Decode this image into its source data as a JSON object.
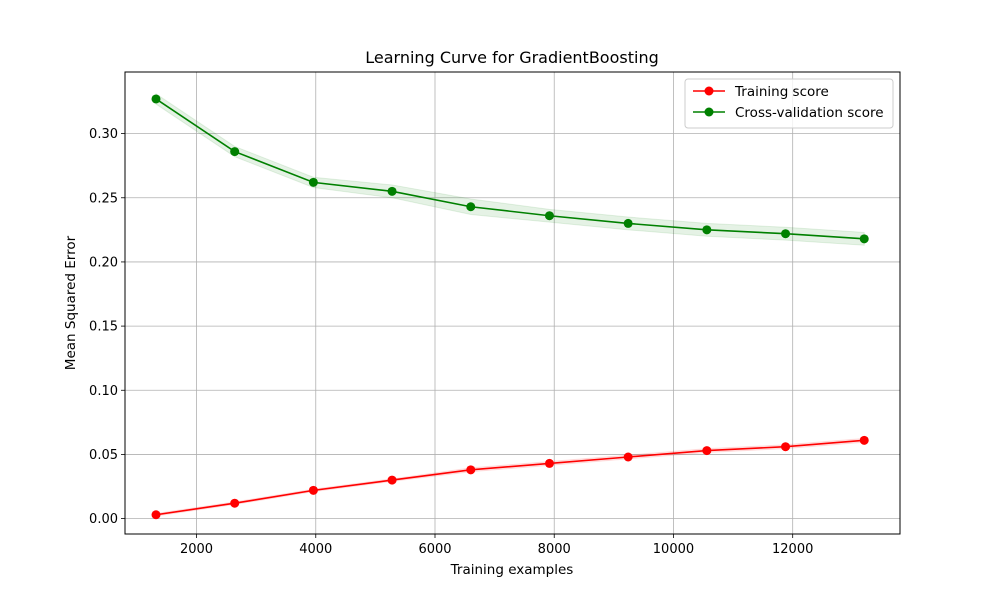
{
  "chart_data": {
    "type": "line",
    "title": "Learning Curve for GradientBoosting",
    "xlabel": "Training examples",
    "ylabel": "Mean Squared Error",
    "xlim": [
      800,
      13800
    ],
    "ylim": [
      -0.012,
      0.348
    ],
    "xticks": [
      2000,
      4000,
      6000,
      8000,
      10000,
      12000
    ],
    "xtick_labels": [
      "2000",
      "4000",
      "6000",
      "8000",
      "10000",
      "12000"
    ],
    "yticks": [
      0.0,
      0.05,
      0.1,
      0.15,
      0.2,
      0.25,
      0.3
    ],
    "ytick_labels": [
      "0.00",
      "0.05",
      "0.10",
      "0.15",
      "0.20",
      "0.25",
      "0.30"
    ],
    "grid": true,
    "legend_position": "top-right",
    "x": [
      1320,
      2640,
      3960,
      5280,
      6600,
      7920,
      9240,
      10560,
      11880,
      13200
    ],
    "series": [
      {
        "name": "Training score",
        "color": "#ff0000",
        "values": [
          0.003,
          0.012,
          0.022,
          0.03,
          0.038,
          0.043,
          0.048,
          0.053,
          0.056,
          0.061
        ],
        "band": [
          0.001,
          0.001,
          0.001,
          0.001,
          0.0015,
          0.0015,
          0.0015,
          0.0015,
          0.0015,
          0.0015
        ]
      },
      {
        "name": "Cross-validation score",
        "color": "#008000",
        "values": [
          0.327,
          0.286,
          0.262,
          0.255,
          0.243,
          0.236,
          0.23,
          0.225,
          0.222,
          0.218
        ],
        "band": [
          0.004,
          0.004,
          0.004,
          0.005,
          0.006,
          0.005,
          0.005,
          0.005,
          0.005,
          0.005
        ]
      }
    ]
  }
}
